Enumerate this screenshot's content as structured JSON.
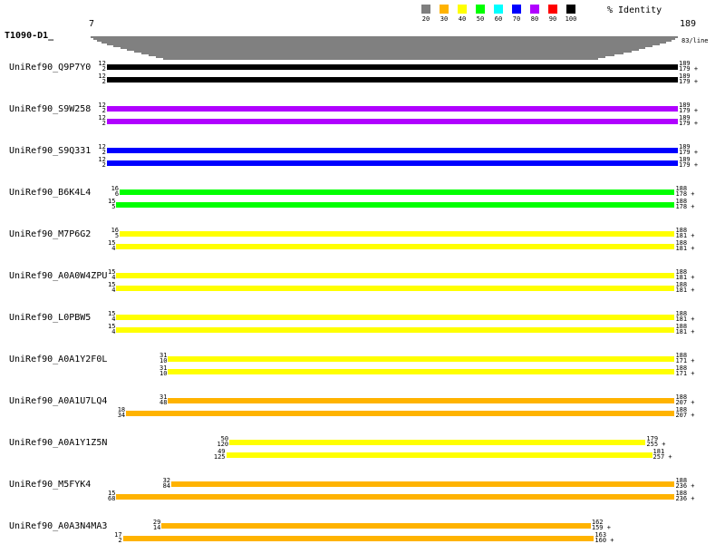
{
  "header": {
    "query_name": "T1090-D1_",
    "query_start": "7",
    "query_end": "189",
    "per_line": "83/line",
    "legend_title": "% Identity"
  },
  "legend": [
    {
      "label": "20",
      "color": "#7f7f7f"
    },
    {
      "label": "30",
      "color": "#ffb300"
    },
    {
      "label": "40",
      "color": "#ffff00"
    },
    {
      "label": "50",
      "color": "#00ff00"
    },
    {
      "label": "60",
      "color": "#00ffff"
    },
    {
      "label": "70",
      "color": "#0000ff"
    },
    {
      "label": "80",
      "color": "#b000ff"
    },
    {
      "label": "90",
      "color": "#ff0000"
    },
    {
      "label": "100",
      "color": "#000000"
    }
  ],
  "hits": [
    {
      "name": "UniRef90_Q9P7Y0",
      "color": "#000000",
      "rows": [
        {
          "qs": "12",
          "ss": "2",
          "qe": "189",
          "se": "179"
        },
        {
          "qs": "12",
          "ss": "2",
          "qe": "189",
          "se": "179"
        }
      ]
    },
    {
      "name": "UniRef90_S9W258",
      "color": "#b000ff",
      "rows": [
        {
          "qs": "12",
          "ss": "2",
          "qe": "189",
          "se": "179"
        },
        {
          "qs": "12",
          "ss": "2",
          "qe": "189",
          "se": "179"
        }
      ]
    },
    {
      "name": "UniRef90_S9Q331",
      "color": "#0000ff",
      "rows": [
        {
          "qs": "12",
          "ss": "2",
          "qe": "189",
          "se": "179"
        },
        {
          "qs": "12",
          "ss": "2",
          "qe": "189",
          "se": "179"
        }
      ]
    },
    {
      "name": "UniRef90_B6K4L4",
      "color": "#00ff00",
      "rows": [
        {
          "qs": "16",
          "ss": "6",
          "qe": "188",
          "se": "178"
        },
        {
          "qs": "15",
          "ss": "5",
          "qe": "188",
          "se": "178"
        }
      ]
    },
    {
      "name": "UniRef90_M7P6G2",
      "color": "#ffff00",
      "rows": [
        {
          "qs": "16",
          "ss": "5",
          "qe": "188",
          "se": "181"
        },
        {
          "qs": "15",
          "ss": "4",
          "qe": "188",
          "se": "181"
        }
      ]
    },
    {
      "name": "UniRef90_A0A0W4ZPU",
      "color": "#ffff00",
      "rows": [
        {
          "qs": "15",
          "ss": "4",
          "qe": "188",
          "se": "181"
        },
        {
          "qs": "15",
          "ss": "4",
          "qe": "188",
          "se": "181"
        }
      ]
    },
    {
      "name": "UniRef90_L0PBW5",
      "color": "#ffff00",
      "rows": [
        {
          "qs": "15",
          "ss": "4",
          "qe": "188",
          "se": "181"
        },
        {
          "qs": "15",
          "ss": "4",
          "qe": "188",
          "se": "181"
        }
      ]
    },
    {
      "name": "UniRef90_A0A1Y2F0L",
      "color": "#ffff00",
      "rows": [
        {
          "qs": "31",
          "ss": "10",
          "qe": "188",
          "se": "171"
        },
        {
          "qs": "31",
          "ss": "10",
          "qe": "188",
          "se": "171"
        }
      ]
    },
    {
      "name": "UniRef90_A0A1U7LQ4",
      "color": "#ffb300",
      "rows": [
        {
          "qs": "31",
          "ss": "48",
          "qe": "188",
          "se": "207"
        },
        {
          "qs": "18",
          "ss": "34",
          "qe": "188",
          "se": "207"
        }
      ]
    },
    {
      "name": "UniRef90_A0A1Y1Z5N",
      "color": "#ffff00",
      "rows": [
        {
          "qs": "50",
          "ss": "120",
          "qe": "179",
          "se": "255"
        },
        {
          "qs": "49",
          "ss": "125",
          "qe": "181",
          "se": "257"
        }
      ]
    },
    {
      "name": "UniRef90_M5FYK4",
      "color": "#ffb300",
      "rows": [
        {
          "qs": "32",
          "ss": "84",
          "qe": "188",
          "se": "236"
        },
        {
          "qs": "15",
          "ss": "68",
          "qe": "188",
          "se": "236"
        }
      ]
    },
    {
      "name": "UniRef90_A0A3N4MA3",
      "color": "#ffb300",
      "rows": [
        {
          "qs": "29",
          "ss": "14",
          "qe": "162",
          "se": "159"
        },
        {
          "qs": "17",
          "ss": "2",
          "qe": "163",
          "se": "160"
        }
      ]
    }
  ]
}
